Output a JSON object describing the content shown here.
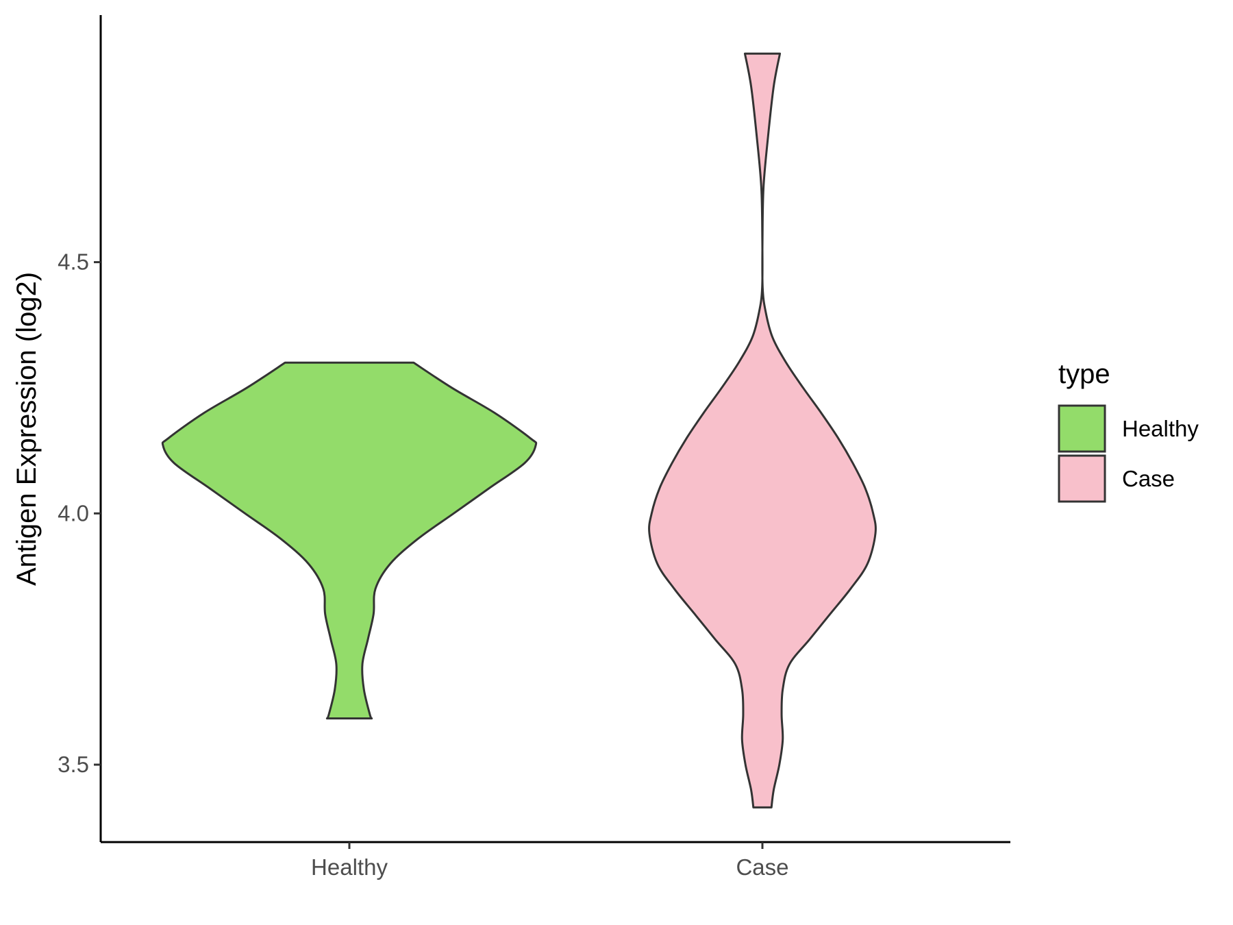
{
  "chart_data": {
    "type": "violin",
    "categories": [
      "Healthy",
      "Case"
    ],
    "ylabel": "Antigen Expression (log2)",
    "xlabel": "",
    "ylim": [
      3.34,
      4.98
    ],
    "yticks": [
      3.5,
      4.0,
      4.5
    ],
    "ytick_labels": [
      "3.5",
      "4.0",
      "4.5"
    ],
    "grid": false,
    "legend": {
      "title": "type",
      "position": "right",
      "entries": [
        {
          "label": "Healthy",
          "color": "#93dc6a"
        },
        {
          "label": "Case",
          "color": "#f8c0cb"
        }
      ]
    },
    "series": [
      {
        "name": "Healthy",
        "color": "#93dc6a",
        "min": 3.592,
        "max": 4.3,
        "density_profile": [
          [
            4.3,
            0.345
          ],
          [
            4.25,
            0.55
          ],
          [
            4.2,
            0.78
          ],
          [
            4.15,
            0.97
          ],
          [
            4.135,
            1.0
          ],
          [
            4.1,
            0.94
          ],
          [
            4.05,
            0.75
          ],
          [
            4.0,
            0.56
          ],
          [
            3.95,
            0.37
          ],
          [
            3.9,
            0.22
          ],
          [
            3.85,
            0.14
          ],
          [
            3.8,
            0.13
          ],
          [
            3.75,
            0.1
          ],
          [
            3.7,
            0.07
          ],
          [
            3.65,
            0.078
          ],
          [
            3.6,
            0.11
          ],
          [
            3.592,
            0.12
          ]
        ]
      },
      {
        "name": "Case",
        "color": "#f8c0cb",
        "min": 3.415,
        "max": 4.915,
        "density_profile": [
          [
            4.915,
            0.155
          ],
          [
            4.85,
            0.1
          ],
          [
            4.75,
            0.05
          ],
          [
            4.65,
            0.01
          ],
          [
            4.55,
            0.001
          ],
          [
            4.45,
            0.002
          ],
          [
            4.4,
            0.03
          ],
          [
            4.35,
            0.09
          ],
          [
            4.3,
            0.21
          ],
          [
            4.25,
            0.36
          ],
          [
            4.2,
            0.52
          ],
          [
            4.15,
            0.67
          ],
          [
            4.1,
            0.8
          ],
          [
            4.05,
            0.91
          ],
          [
            4.0,
            0.98
          ],
          [
            3.96,
            1.0
          ],
          [
            3.9,
            0.93
          ],
          [
            3.85,
            0.78
          ],
          [
            3.8,
            0.6
          ],
          [
            3.75,
            0.42
          ],
          [
            3.7,
            0.24
          ],
          [
            3.65,
            0.18
          ],
          [
            3.6,
            0.17
          ],
          [
            3.55,
            0.18
          ],
          [
            3.5,
            0.15
          ],
          [
            3.45,
            0.1
          ],
          [
            3.415,
            0.08
          ]
        ]
      }
    ]
  }
}
